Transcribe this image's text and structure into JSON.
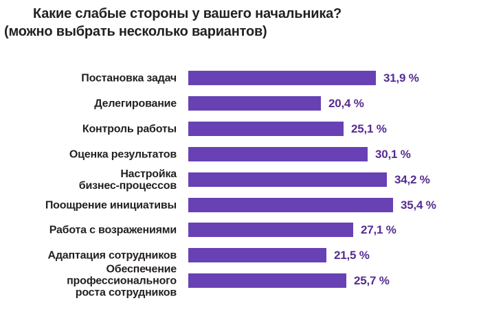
{
  "title": "Какие слабые стороны у вашего начальника?",
  "subtitle": "(можно выбрать несколько вариантов)",
  "colors": {
    "bar": "#6841b4",
    "value_text": "#542c90",
    "label_text": "#231f20",
    "background": "#ffffff"
  },
  "chart_data": {
    "type": "bar",
    "orientation": "horizontal",
    "title": "Какие слабые стороны у вашего начальника?",
    "subtitle": "(можно выбрать несколько вариантов)",
    "unit": "%",
    "categories": [
      "Постановка задач",
      "Делегирование",
      "Контроль работы",
      "Оценка результатов",
      "Настройка бизнес-процессов",
      "Поощрение инициативы",
      "Работа с возражениями",
      "Адаптация сотрудников",
      "Обеспечение профессионального роста сотрудников"
    ],
    "category_lines": [
      [
        "Постановка задач"
      ],
      [
        "Делегирование"
      ],
      [
        "Контроль работы"
      ],
      [
        "Оценка результатов"
      ],
      [
        "Настройка",
        "бизнес-процессов"
      ],
      [
        "Поощрение инициативы"
      ],
      [
        "Работа с возражениями"
      ],
      [
        "Адаптация сотрудников"
      ],
      [
        "Обеспечение",
        "профессионального",
        "роста сотрудников"
      ]
    ],
    "values": [
      31.9,
      20.4,
      25.1,
      30.1,
      34.2,
      35.4,
      27.1,
      21.5,
      25.7
    ],
    "value_labels": [
      "31,9 %",
      "20,4 %",
      "25,1 %",
      "30,1 %",
      "34,2 %",
      "35,4 %",
      "27,1 %",
      "21,5 %",
      "25,7 %"
    ],
    "xlim": [
      0,
      40
    ],
    "grid": false,
    "legend": false,
    "bar_color": "#6841b4",
    "value_label_color": "#542c90"
  }
}
